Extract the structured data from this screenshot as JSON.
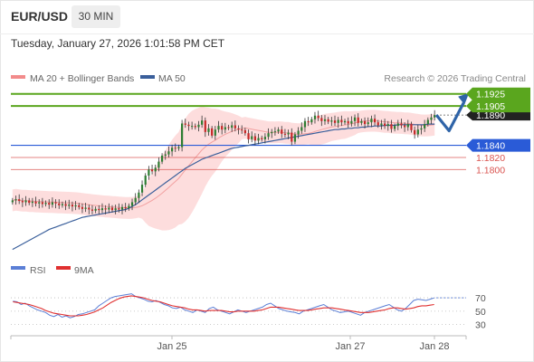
{
  "header": {
    "symbol": "EUR/USD",
    "timeframe": "30 MIN"
  },
  "timestamp": "Tuesday, January 27, 2026 1:01:58 PM CET",
  "legend": {
    "bollinger": "MA 20 + Bollinger Bands",
    "ma50": "MA 50",
    "copyright": "Research © 2026 Trading Central",
    "rsi": "RSI",
    "ma9": "9MA"
  },
  "colors": {
    "target": "#5aa61e",
    "pivot": "#2a5bd7",
    "support": "#d9534f",
    "ma50": "#3a5f9b",
    "bollinger_fill": "#fcd5d5",
    "bollinger_line": "#f2a0a0",
    "candle_up": "#2e7d32",
    "candle_down": "#c62828",
    "rsi": "#5b7fd6",
    "rsi_ma": "#e03030",
    "arrow": "#2f64a8"
  },
  "chart_data": [
    {
      "type": "candlestick",
      "title": "",
      "y_range": [
        1.166,
        1.1935
      ],
      "x_ticks": [
        "Jan 25",
        "Jan 27",
        "Jan 28"
      ],
      "levels": [
        {
          "label": "1.1925",
          "value": 1.1925,
          "kind": "target"
        },
        {
          "label": "1.1905",
          "value": 1.1905,
          "kind": "target"
        },
        {
          "label": "1.1840",
          "value": 1.184,
          "kind": "pivot"
        },
        {
          "label": "1.1820",
          "value": 1.182,
          "kind": "support"
        },
        {
          "label": "1.1800",
          "value": 1.18,
          "kind": "support"
        }
      ],
      "current_price_label": "1.1890",
      "close": [
        1.1749,
        1.1751,
        1.1748,
        1.1746,
        1.1749,
        1.1745,
        1.1747,
        1.1744,
        1.1746,
        1.1743,
        1.1745,
        1.1742,
        1.1746,
        1.1744,
        1.1741,
        1.1743,
        1.174,
        1.1742,
        1.1739,
        1.1741,
        1.1738,
        1.1735,
        1.1737,
        1.1734,
        1.1732,
        1.1735,
        1.1733,
        1.1736,
        1.1734,
        1.1737,
        1.1733,
        1.1736,
        1.1734,
        1.1738,
        1.1736,
        1.174,
        1.1746,
        1.1753,
        1.1762,
        1.1775,
        1.179,
        1.18,
        1.1797,
        1.1803,
        1.1813,
        1.1823,
        1.1825,
        1.183,
        1.1836,
        1.1835,
        1.1837,
        1.1876,
        1.1874,
        1.1872,
        1.1872,
        1.187,
        1.1874,
        1.1881,
        1.1862,
        1.1868,
        1.1856,
        1.1866,
        1.1872,
        1.1866,
        1.187,
        1.1869,
        1.1873,
        1.1868,
        1.1866,
        1.1865,
        1.186,
        1.185,
        1.1855,
        1.1848,
        1.1852,
        1.185,
        1.1854,
        1.186,
        1.1862,
        1.1863,
        1.1866,
        1.1859,
        1.1858,
        1.1861,
        1.1846,
        1.1858,
        1.1864,
        1.187,
        1.188,
        1.1878,
        1.1883,
        1.1889,
        1.1885,
        1.188,
        1.1883,
        1.1879,
        1.1881,
        1.1877,
        1.1882,
        1.1878,
        1.188,
        1.1876,
        1.188,
        1.1886,
        1.1877,
        1.188,
        1.1875,
        1.1878,
        1.1884,
        1.1878,
        1.1873,
        1.1876,
        1.1872,
        1.1875,
        1.1867,
        1.1872,
        1.1876,
        1.1873,
        1.187,
        1.1875,
        1.1865,
        1.1858,
        1.1866,
        1.1868,
        1.1875,
        1.1882,
        1.1886,
        1.189
      ],
      "ma50": [
        1.1668,
        1.1671,
        1.1674,
        1.1677,
        1.168,
        1.1683,
        1.1686,
        1.1689,
        1.1692,
        1.1695,
        1.1698,
        1.1701,
        1.1703,
        1.1705,
        1.1707,
        1.1709,
        1.1711,
        1.1713,
        1.1715,
        1.1717,
        1.1719,
        1.1721,
        1.1722,
        1.1723,
        1.1724,
        1.1725,
        1.1726,
        1.1727,
        1.1728,
        1.1729,
        1.173,
        1.1731,
        1.1732,
        1.1733,
        1.1734,
        1.1736,
        1.1739,
        1.1742,
        1.1746,
        1.175,
        1.1754,
        1.1758,
        1.1762,
        1.1766,
        1.177,
        1.1774,
        1.1778,
        1.1782,
        1.1786,
        1.179,
        1.1794,
        1.1798,
        1.1802,
        1.1805,
        1.1808,
        1.1811,
        1.1814,
        1.1817,
        1.1819,
        1.1821,
        1.1823,
        1.1825,
        1.1827,
        1.1829,
        1.1831,
        1.1833,
        1.1835,
        1.1836,
        1.1837,
        1.1838,
        1.1839,
        1.184,
        1.1841,
        1.1842,
        1.1843,
        1.1844,
        1.1845,
        1.1846,
        1.1847,
        1.1848,
        1.1849,
        1.185,
        1.1851,
        1.1852,
        1.1853,
        1.1854,
        1.1855,
        1.1856,
        1.1857,
        1.1858,
        1.1859,
        1.186,
        1.1861,
        1.1862,
        1.1863,
        1.1864,
        1.1865,
        1.1866,
        1.1866,
        1.1867,
        1.1867,
        1.1868,
        1.1868,
        1.1869,
        1.1869,
        1.187,
        1.187,
        1.1871,
        1.1871,
        1.1872,
        1.1872,
        1.1872,
        1.1873,
        1.1873,
        1.1873,
        1.1873,
        1.1874,
        1.1874,
        1.1874,
        1.1874,
        1.1874,
        1.1874,
        1.1874,
        1.1874,
        1.1874,
        1.1875,
        1.1875,
        1.1875
      ]
    },
    {
      "type": "line",
      "title": "RSI",
      "y_ticks": [
        70,
        50,
        30
      ],
      "y_range": [
        20,
        85
      ],
      "series": [
        {
          "name": "RSI",
          "values": [
            65,
            64,
            60,
            62,
            58,
            55,
            52,
            50,
            48,
            44,
            42,
            45,
            41,
            43,
            40,
            42,
            45,
            46,
            48,
            50,
            52,
            58,
            62,
            66,
            70,
            72,
            73,
            74,
            75,
            76,
            72,
            70,
            68,
            65,
            64,
            66,
            63,
            60,
            58,
            55,
            54,
            56,
            52,
            50,
            48,
            52,
            50,
            48,
            54,
            56,
            52,
            50,
            48,
            46,
            49,
            52,
            50,
            48,
            50,
            52,
            54,
            56,
            60,
            62,
            58,
            54,
            52,
            50,
            49,
            48,
            46,
            50,
            52,
            54,
            56,
            58,
            60,
            56,
            52,
            50,
            48,
            49,
            50,
            48,
            46,
            44,
            48,
            50,
            52,
            54,
            56,
            58,
            60,
            56,
            52,
            50,
            54,
            60,
            66,
            68,
            67,
            66,
            68,
            70
          ]
        },
        {
          "name": "9MA",
          "values": [
            64,
            63,
            62,
            61,
            60,
            58,
            56,
            54,
            51,
            49,
            47,
            46,
            45,
            44,
            43,
            43,
            43,
            44,
            45,
            47,
            49,
            52,
            55,
            59,
            63,
            66,
            69,
            71,
            72,
            73,
            72,
            71,
            70,
            68,
            66,
            65,
            64,
            62,
            60,
            58,
            57,
            56,
            55,
            53,
            52,
            52,
            51,
            50,
            51,
            51,
            51,
            51,
            50,
            49,
            49,
            50,
            50,
            50,
            50,
            50,
            51,
            52,
            54,
            56,
            56,
            56,
            55,
            54,
            53,
            52,
            51,
            51,
            51,
            52,
            53,
            54,
            55,
            55,
            55,
            54,
            53,
            52,
            51,
            50,
            49,
            48,
            48,
            48,
            49,
            50,
            51,
            52,
            54,
            55,
            55,
            54,
            53,
            54,
            55,
            57,
            58,
            58,
            59,
            60
          ]
        }
      ]
    }
  ]
}
